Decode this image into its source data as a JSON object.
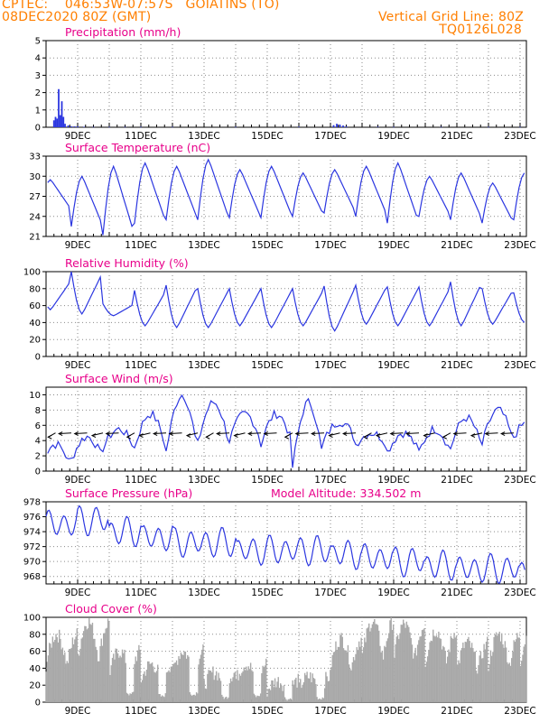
{
  "header": {
    "center": "CPTEC:",
    "coords": "046:53W-07:57S",
    "station": "GOIATINS (TO)",
    "run": "08DEC2020 80Z (GMT)",
    "grid_note": "Vertical Grid Line: 80Z",
    "code": "TQ0126L028"
  },
  "colors": {
    "header": "#ff7f00",
    "title": "#e8008a",
    "line": "#2b36e0",
    "bar": "#a9a9a9",
    "grid": "#8a8a8a"
  },
  "x_labels": [
    "9DEC",
    "11DEC",
    "13DEC",
    "15DEC",
    "17DEC",
    "19DEC",
    "21DEC",
    "23DEC"
  ],
  "chart_data": [
    {
      "type": "bar",
      "title": "Precipitation (mm/h)",
      "ylim": [
        0,
        5
      ],
      "yticks": [
        0,
        1,
        2,
        3,
        4,
        5
      ],
      "x": [
        0.25,
        0.3,
        0.35,
        0.4,
        0.45,
        0.5,
        0.55,
        0.6,
        0.7,
        0.8,
        0.9,
        1.0,
        1.2,
        1.5,
        2.0,
        2.5,
        3.0,
        4.0,
        6.0,
        8.0,
        9.1,
        9.2,
        9.3,
        9.4,
        9.5,
        10.5,
        11.0,
        12.5,
        14.0,
        15.0
      ],
      "values": [
        0.4,
        0.6,
        0.5,
        2.2,
        0.7,
        1.5,
        0.6,
        0.2,
        0.1,
        0.05,
        0.05,
        0.05,
        0.03,
        0.02,
        0.02,
        0.02,
        0.02,
        0.02,
        0.02,
        0.03,
        0.12,
        0.2,
        0.15,
        0.1,
        0.05,
        0.03,
        0.02,
        0.02,
        0.02,
        0.02
      ]
    },
    {
      "type": "line",
      "title": "Surface Temperature (nC)",
      "ylim": [
        21,
        33
      ],
      "yticks": [
        21,
        24,
        27,
        30,
        33
      ],
      "y_pattern": [
        29.5,
        30,
        31.5,
        32,
        31.5,
        32.5,
        31,
        31.5,
        30.5,
        31,
        31.5,
        32,
        30,
        30.5,
        29,
        30.5
      ],
      "y_trough": [
        25,
        22.5,
        21.2,
        23,
        23.5,
        23.5,
        23.8,
        23.8,
        24,
        24.5,
        24,
        23,
        24,
        23.5,
        23,
        23.5
      ]
    },
    {
      "type": "line",
      "title": "Relative Humidity (%)",
      "ylim": [
        0,
        100
      ],
      "yticks": [
        0,
        20,
        40,
        60,
        80,
        100
      ],
      "y_peak": [
        90,
        100,
        62,
        78,
        84,
        80,
        80,
        80,
        80,
        83,
        84,
        82,
        82,
        88,
        80,
        75
      ],
      "y_trough": [
        55,
        50,
        48,
        36,
        34,
        34,
        36,
        34,
        36,
        30,
        38,
        36,
        36,
        36,
        38,
        40
      ]
    },
    {
      "type": "line",
      "title": "Surface Wind (m/s)",
      "ylim": [
        0,
        11
      ],
      "yticks": [
        0,
        2,
        4,
        6,
        8,
        10
      ],
      "y_peak": [
        3.5,
        4.5,
        5.5,
        7.5,
        10,
        9,
        7.5,
        7.5,
        9,
        6.5,
        5,
        5,
        5.5,
        7,
        8,
        6.5
      ],
      "y_trough": [
        0.5,
        1.5,
        3,
        3,
        2.5,
        3.5,
        4,
        3.5,
        0.5,
        4,
        3.5,
        2.5,
        2.5,
        3,
        3.5,
        4.5
      ]
    },
    {
      "type": "line",
      "title": "Surface Pressure (hPa)",
      "subtitle": "Model Altitude: 334.502 m",
      "ylim": [
        967,
        978
      ],
      "yticks": [
        968,
        970,
        972,
        974,
        976,
        978
      ],
      "y_mean": [
        975,
        975.5,
        974,
        973.2,
        972.5,
        972.5,
        971.5,
        971.5,
        971.5,
        971,
        970.5,
        970,
        969.5,
        969,
        969,
        968.5
      ],
      "amplitude": 1.8
    },
    {
      "type": "bar",
      "title": "Cloud Cover (%)",
      "ylim": [
        0,
        100
      ],
      "yticks": [
        0,
        20,
        40,
        60,
        80,
        100
      ],
      "y_envelope": [
        80,
        95,
        60,
        45,
        60,
        35,
        45,
        25,
        30,
        75,
        95,
        92,
        85,
        70,
        80,
        85
      ]
    }
  ]
}
